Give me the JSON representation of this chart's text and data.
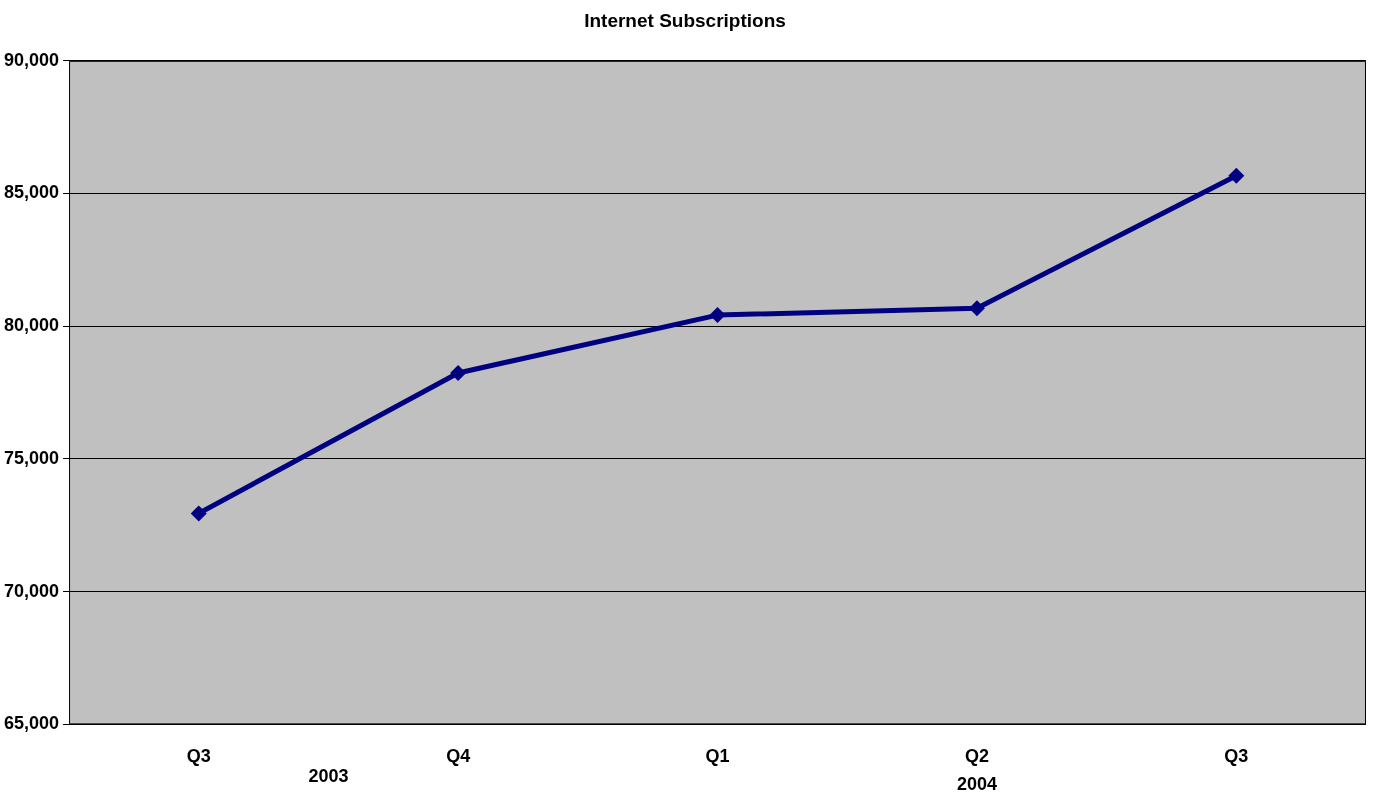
{
  "chart_data": {
    "type": "line",
    "title": "Internet Subscriptions",
    "categories": [
      "Q3",
      "Q4",
      "Q1",
      "Q2",
      "Q3"
    ],
    "series": [
      {
        "color": "#000080",
        "values": [
          72950,
          78240,
          80420,
          80680,
          85670
        ]
      }
    ],
    "ylim": [
      65000,
      90000
    ],
    "yticks": [
      {
        "value": 65000,
        "label": "65,000"
      },
      {
        "value": 70000,
        "label": "70,000"
      },
      {
        "value": 75000,
        "label": "75,000"
      },
      {
        "value": 80000,
        "label": "80,000"
      },
      {
        "value": 85000,
        "label": "85,000"
      },
      {
        "value": 90000,
        "label": "90,000"
      }
    ],
    "grid": "y",
    "legend": false,
    "marker": "diamond",
    "line_style": "solid",
    "annotations": [
      "2003",
      "2004"
    ]
  }
}
